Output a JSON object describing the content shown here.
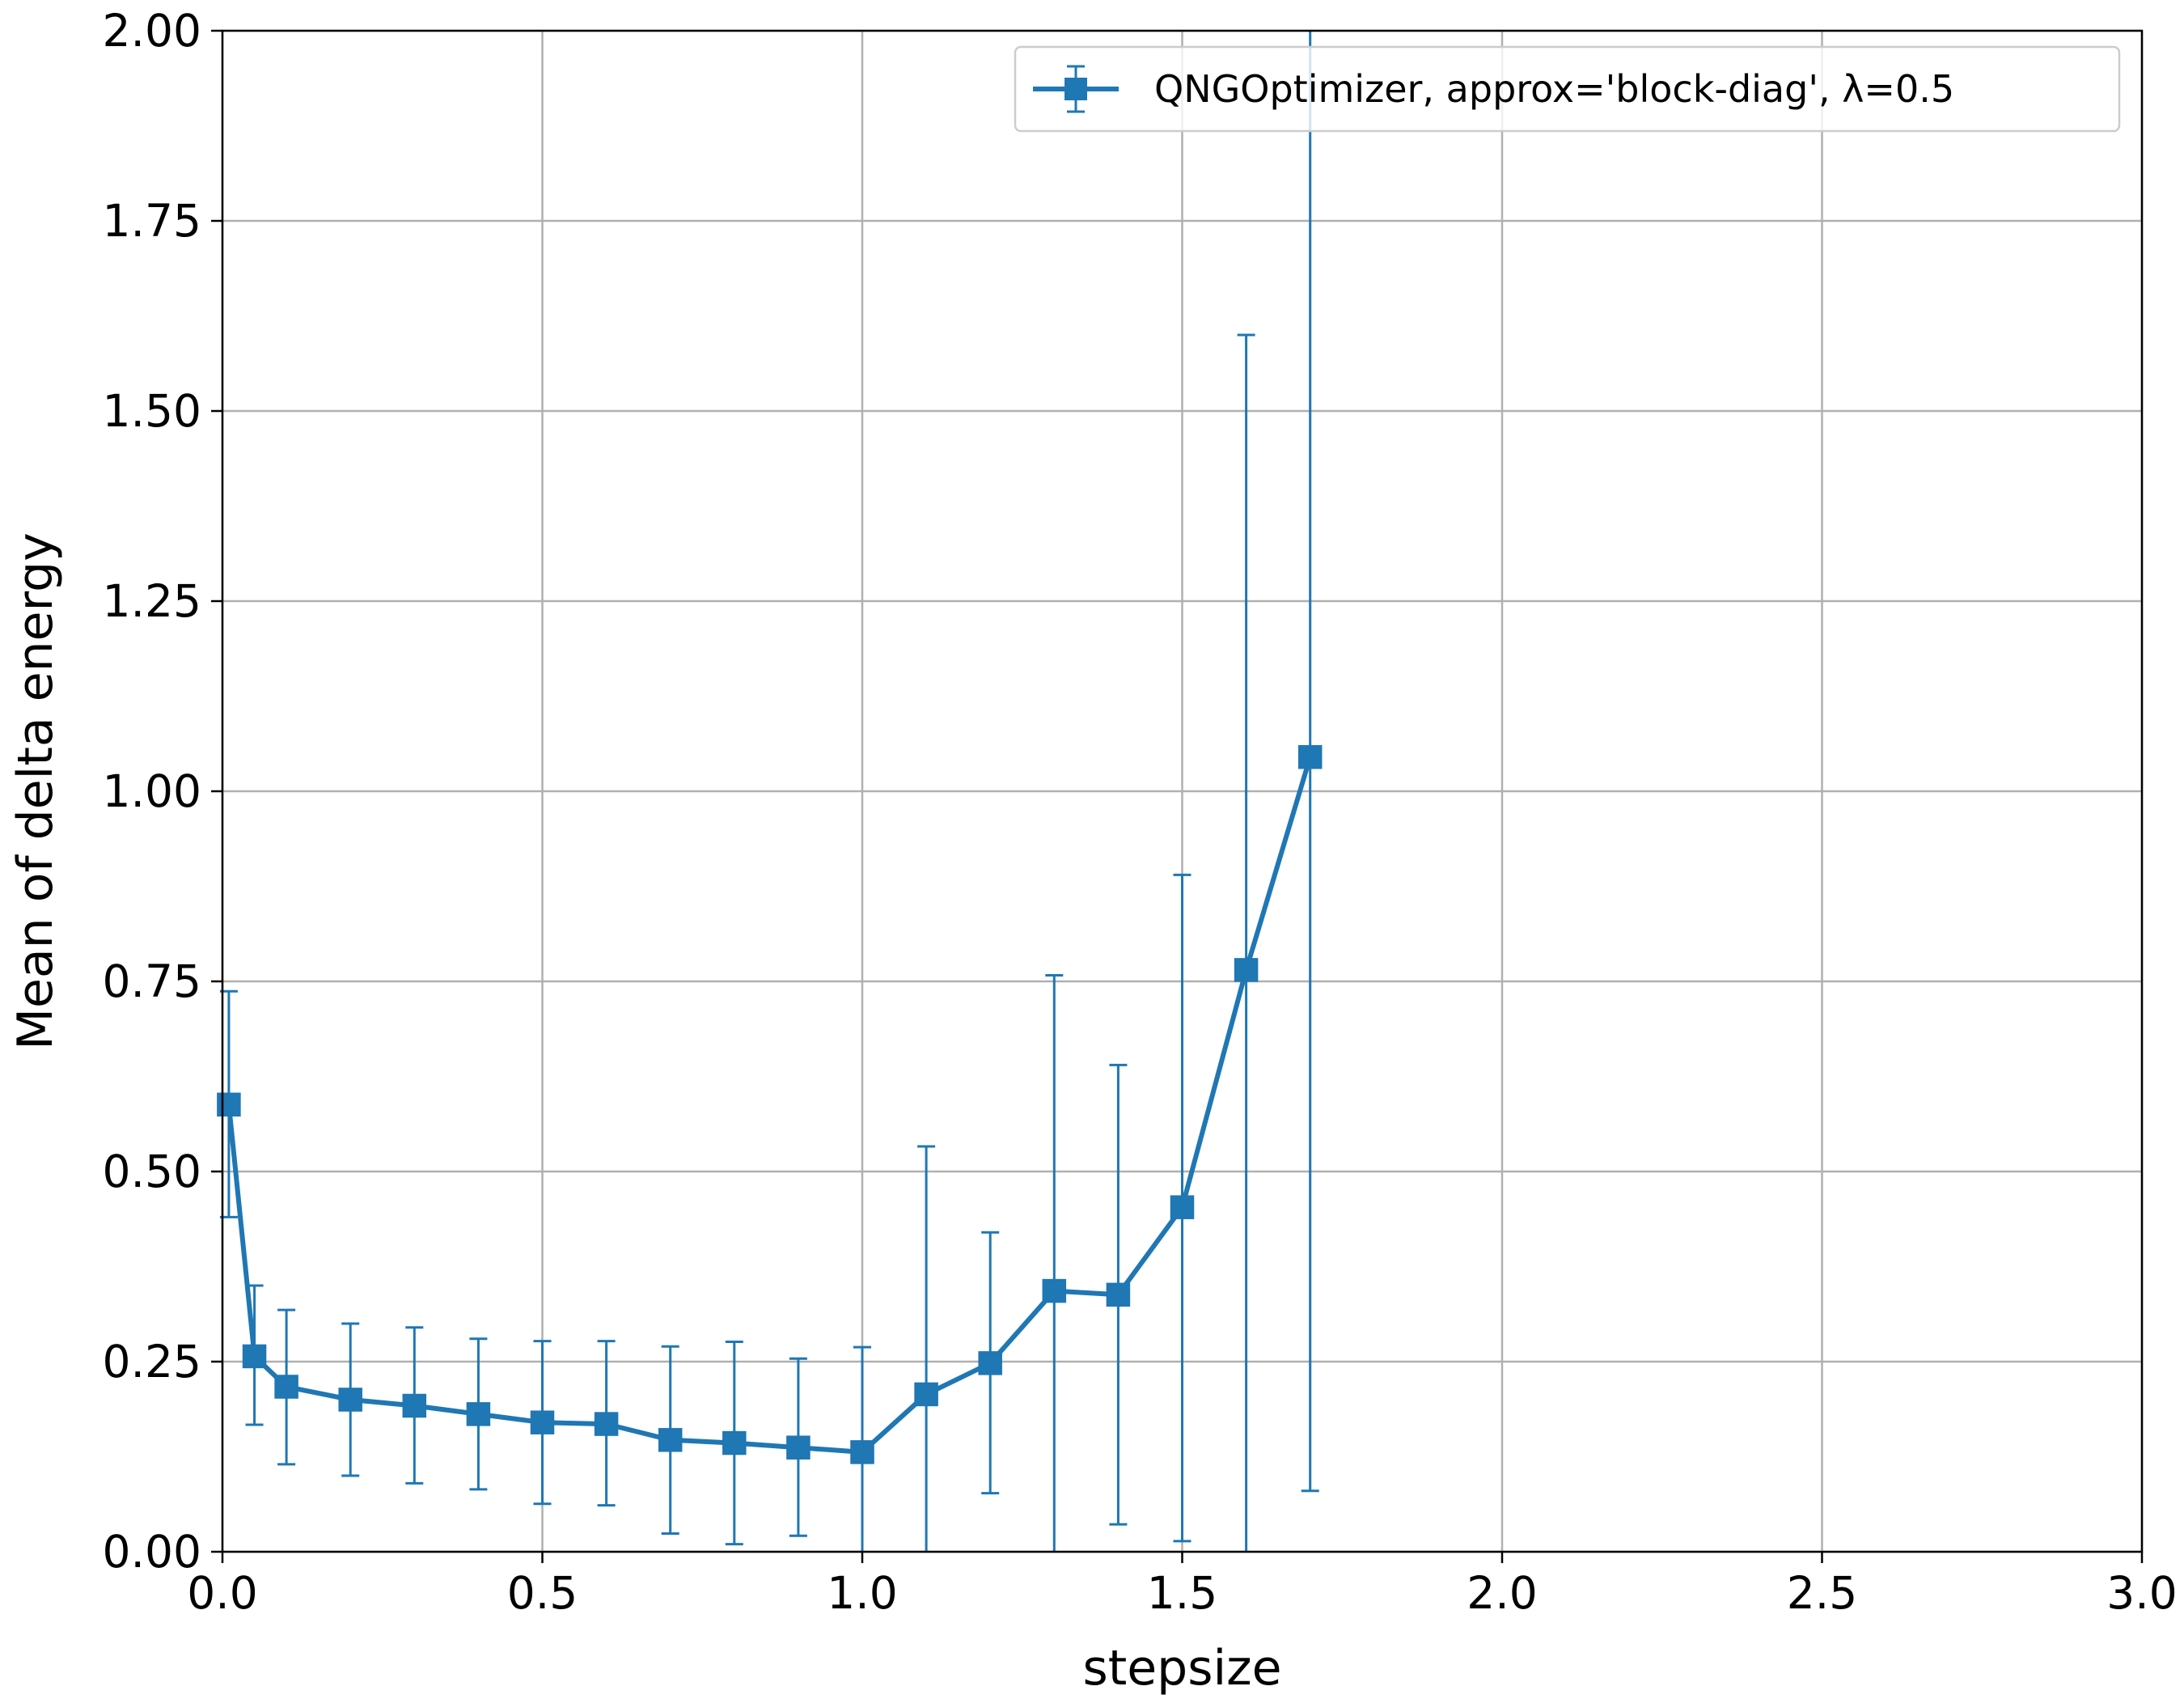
{
  "chart_data": {
    "type": "line",
    "title": "",
    "xlabel": "stepsize",
    "ylabel": "Mean of delta energy",
    "xlim": [
      0.0,
      3.0
    ],
    "ylim": [
      0.0,
      2.0
    ],
    "xticks": [
      "0.0",
      "0.5",
      "1.0",
      "1.5",
      "2.0",
      "2.5",
      "3.0"
    ],
    "yticks": [
      "0.00",
      "0.25",
      "0.50",
      "0.75",
      "1.00",
      "1.25",
      "1.50",
      "1.75",
      "2.00"
    ],
    "grid": true,
    "legend_position": "top-right",
    "marker": "square",
    "color": "#1f77b4",
    "series": [
      {
        "name": "QNGOptimizer, approx='block-diag', λ=0.5",
        "x": [
          0.01,
          0.05,
          0.1,
          0.2,
          0.3,
          0.4,
          0.5,
          0.6,
          0.7,
          0.8,
          0.9,
          1.0,
          1.1,
          1.2,
          1.3,
          1.4,
          1.5,
          1.6,
          1.7
        ],
        "y": [
          0.588,
          0.257,
          0.217,
          0.2,
          0.192,
          0.181,
          0.17,
          0.168,
          0.147,
          0.143,
          0.137,
          0.131,
          0.207,
          0.248,
          0.343,
          0.338,
          0.453,
          0.765,
          1.045
        ],
        "err_low": [
          0.44,
          0.167,
          0.115,
          0.1,
          0.09,
          0.082,
          0.063,
          0.061,
          0.024,
          0.01,
          0.021,
          0.0,
          0.0,
          0.077,
          0.0,
          0.036,
          0.014,
          0.0,
          0.08
        ],
        "err_high": [
          0.737,
          0.35,
          0.318,
          0.3,
          0.295,
          0.28,
          0.277,
          0.277,
          0.27,
          0.276,
          0.254,
          0.269,
          0.533,
          0.42,
          0.758,
          0.64,
          0.89,
          1.6,
          2.0
        ]
      }
    ]
  }
}
